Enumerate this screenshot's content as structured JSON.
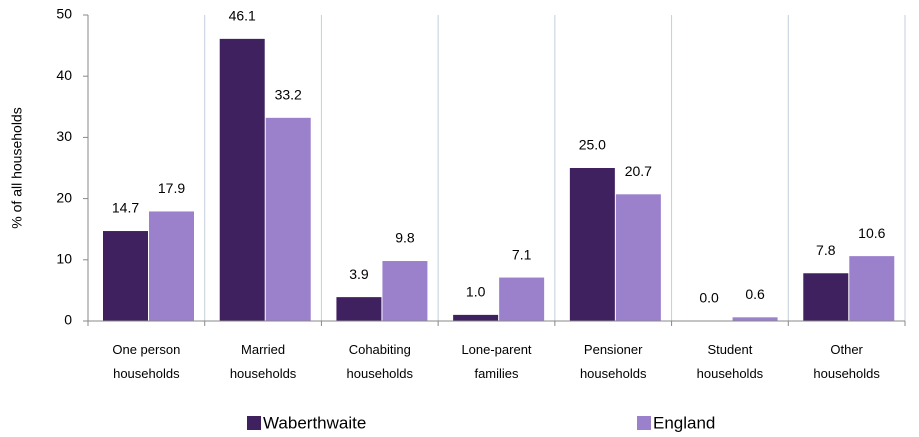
{
  "chart_data": {
    "type": "bar",
    "y_label": "% of all households",
    "categories": [
      "One person\nhouseholds",
      "Married\nhouseholds",
      "Cohabiting\nhouseholds",
      "Lone-parent\nfamilies",
      "Pensioner\nhouseholds",
      "Student\nhouseholds",
      "Other\nhouseholds"
    ],
    "series": [
      {
        "name": "Waberthwaite",
        "color": "#3f2160",
        "values": [
          14.7,
          46.1,
          3.9,
          1,
          25,
          0,
          7.8
        ],
        "value_labels": [
          "14.7",
          "46.1",
          "3.9",
          "1.0",
          "25.0",
          "0.0",
          "7.8"
        ]
      },
      {
        "name": "England",
        "color": "#9b80cc",
        "values": [
          17.9,
          33.2,
          9.8,
          7.1,
          20.7,
          0.6,
          10.6
        ],
        "value_labels": [
          "17.9",
          "33.2",
          "9.8",
          "7.1",
          "20.7",
          "0.6",
          "10.6"
        ]
      }
    ],
    "ylim": [
      0,
      50
    ],
    "yticks": [
      0,
      10,
      20,
      30,
      40,
      50
    ],
    "legend": "bottom"
  }
}
